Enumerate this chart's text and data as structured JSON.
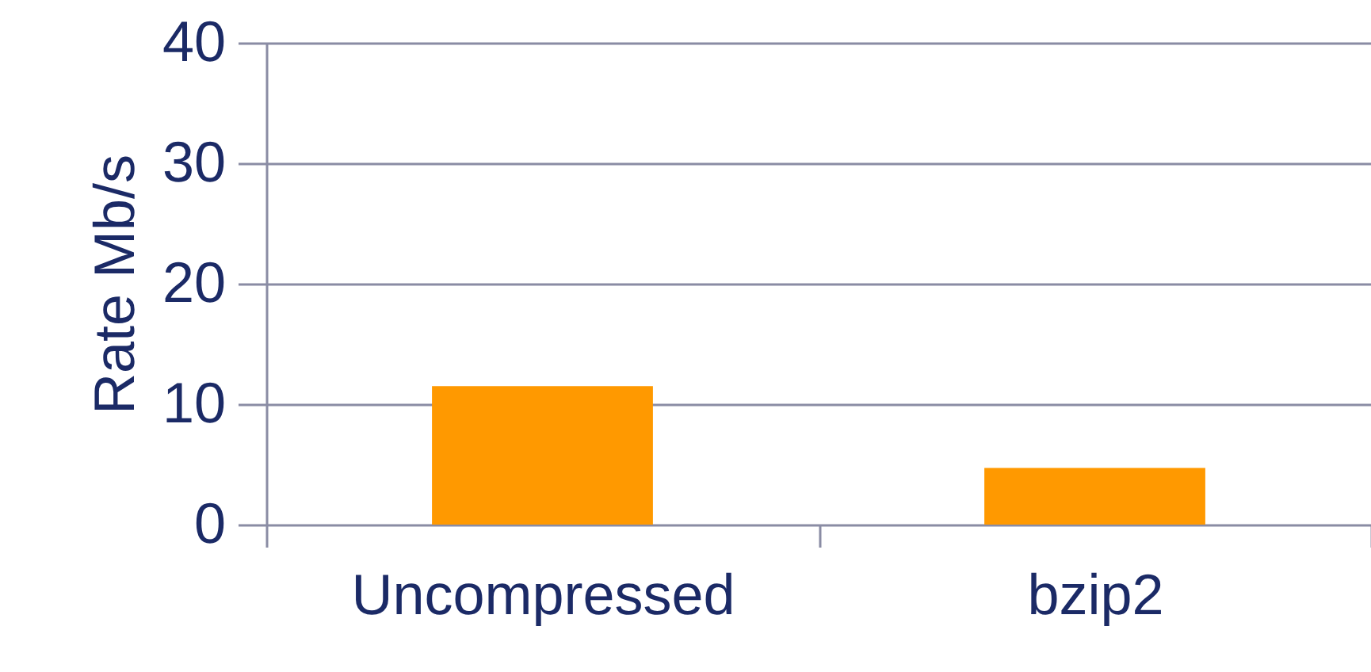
{
  "chart_data": {
    "type": "bar",
    "ylabel": "Rate Mb/s",
    "categories": [
      "Uncompressed",
      "bzip2"
    ],
    "values": [
      11.5,
      4.7
    ],
    "color": "#ff9900",
    "ylim": [
      0,
      40
    ],
    "yticks": [
      0,
      10,
      20,
      30,
      40
    ],
    "grid": "y"
  }
}
